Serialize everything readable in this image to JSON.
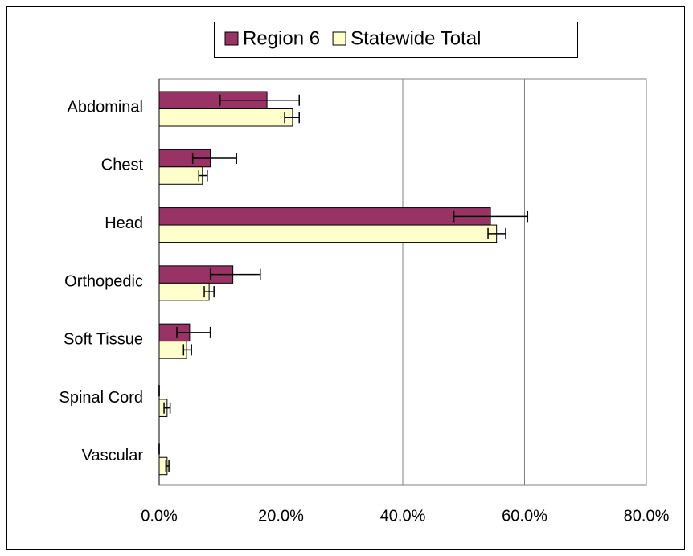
{
  "chart_data": {
    "type": "hbar",
    "categories": [
      "Abdominal",
      "Chest",
      "Head",
      "Orthopedic",
      "Soft Tissue",
      "Spinal Cord",
      "Vascular"
    ],
    "series": [
      {
        "name": "Region 6",
        "color": "#993366",
        "values": [
          17.7,
          8.4,
          54.4,
          12.1,
          5.0,
          0,
          0
        ],
        "error_minus": [
          7.7,
          2.9,
          6.0,
          3.7,
          2.1,
          0,
          0
        ],
        "error_plus": [
          5.3,
          4.3,
          6.1,
          4.5,
          3.4,
          0,
          0
        ]
      },
      {
        "name": "Statewide Total",
        "color": "#ffffcc",
        "values": [
          21.9,
          7.1,
          55.4,
          8.2,
          4.5,
          1.3,
          1.3
        ],
        "error_minus": [
          1.3,
          0.6,
          1.4,
          0.8,
          0.5,
          0.5,
          0.2
        ],
        "error_plus": [
          1.1,
          0.8,
          1.5,
          0.8,
          0.8,
          0.5,
          0.3
        ]
      }
    ],
    "xlim": [
      0,
      80
    ],
    "xticks": [
      {
        "value": 0,
        "label": "0.0%"
      },
      {
        "value": 20,
        "label": "20.0%"
      },
      {
        "value": 40,
        "label": "40.0%"
      },
      {
        "value": 60,
        "label": "60.0%"
      },
      {
        "value": 80,
        "label": "80.0%"
      }
    ],
    "grid": true,
    "legend": "top"
  }
}
